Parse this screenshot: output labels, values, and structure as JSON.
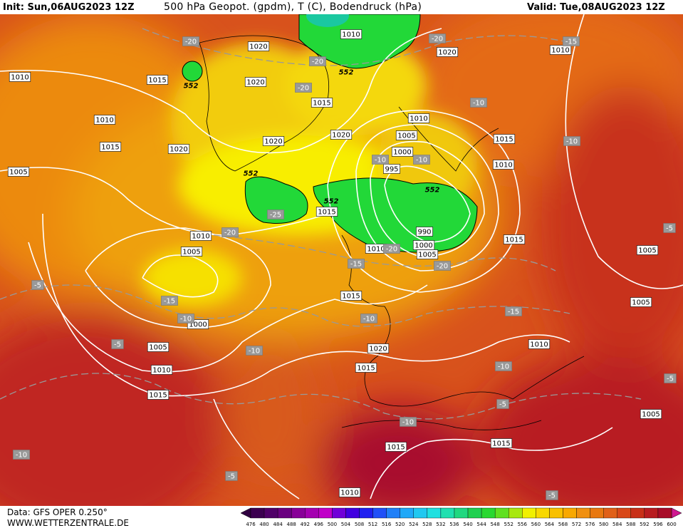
{
  "header": {
    "init": "Init: Sun,06AUG2023 12Z",
    "title": "500 hPa Geopot. (gpdm), T (C), Bodendruck (hPa)",
    "valid": "Valid: Tue,08AUG2023 12Z"
  },
  "footer": {
    "data": "Data: GFS OPER 0.250°",
    "site": "WWW.WETTERZENTRALE.DE"
  },
  "colorbar": {
    "labels": [
      476,
      480,
      484,
      488,
      492,
      496,
      500,
      504,
      508,
      512,
      516,
      520,
      524,
      528,
      532,
      536,
      540,
      544,
      548,
      552,
      556,
      560,
      564,
      568,
      572,
      576,
      580,
      584,
      588,
      592,
      596,
      600
    ]
  },
  "map": {
    "pressure_labels": [
      "1010",
      "1020",
      "1020",
      "1010",
      "1010",
      "1015",
      "1020",
      "1015",
      "1010",
      "1010",
      "1005",
      "1020",
      "1020",
      "1015",
      "1000",
      "1015",
      "1020",
      "995",
      "1010",
      "1005",
      "1015",
      "1010",
      "990",
      "1015",
      "1000",
      "1010",
      "1005",
      "1005",
      "1005",
      "1015",
      "1005",
      "1000",
      "1020",
      "1010",
      "1005",
      "1015",
      "1010",
      "1015",
      "1005",
      "1015",
      "1015",
      "1010"
    ],
    "temperature_labels": [
      "-20",
      "-20",
      "-15",
      "-20",
      "-20",
      "-10",
      "-10",
      "-10",
      "-10",
      "-25",
      "-20",
      "-5",
      "-20",
      "-15",
      "-20",
      "-5",
      "-15",
      "-10",
      "-15",
      "-10",
      "-5",
      "-10",
      "-10",
      "-5",
      "-5",
      "-10",
      "-10",
      "-5",
      "-5"
    ],
    "geopotential_labels": [
      "552",
      "552",
      "552",
      "552",
      "552"
    ]
  }
}
